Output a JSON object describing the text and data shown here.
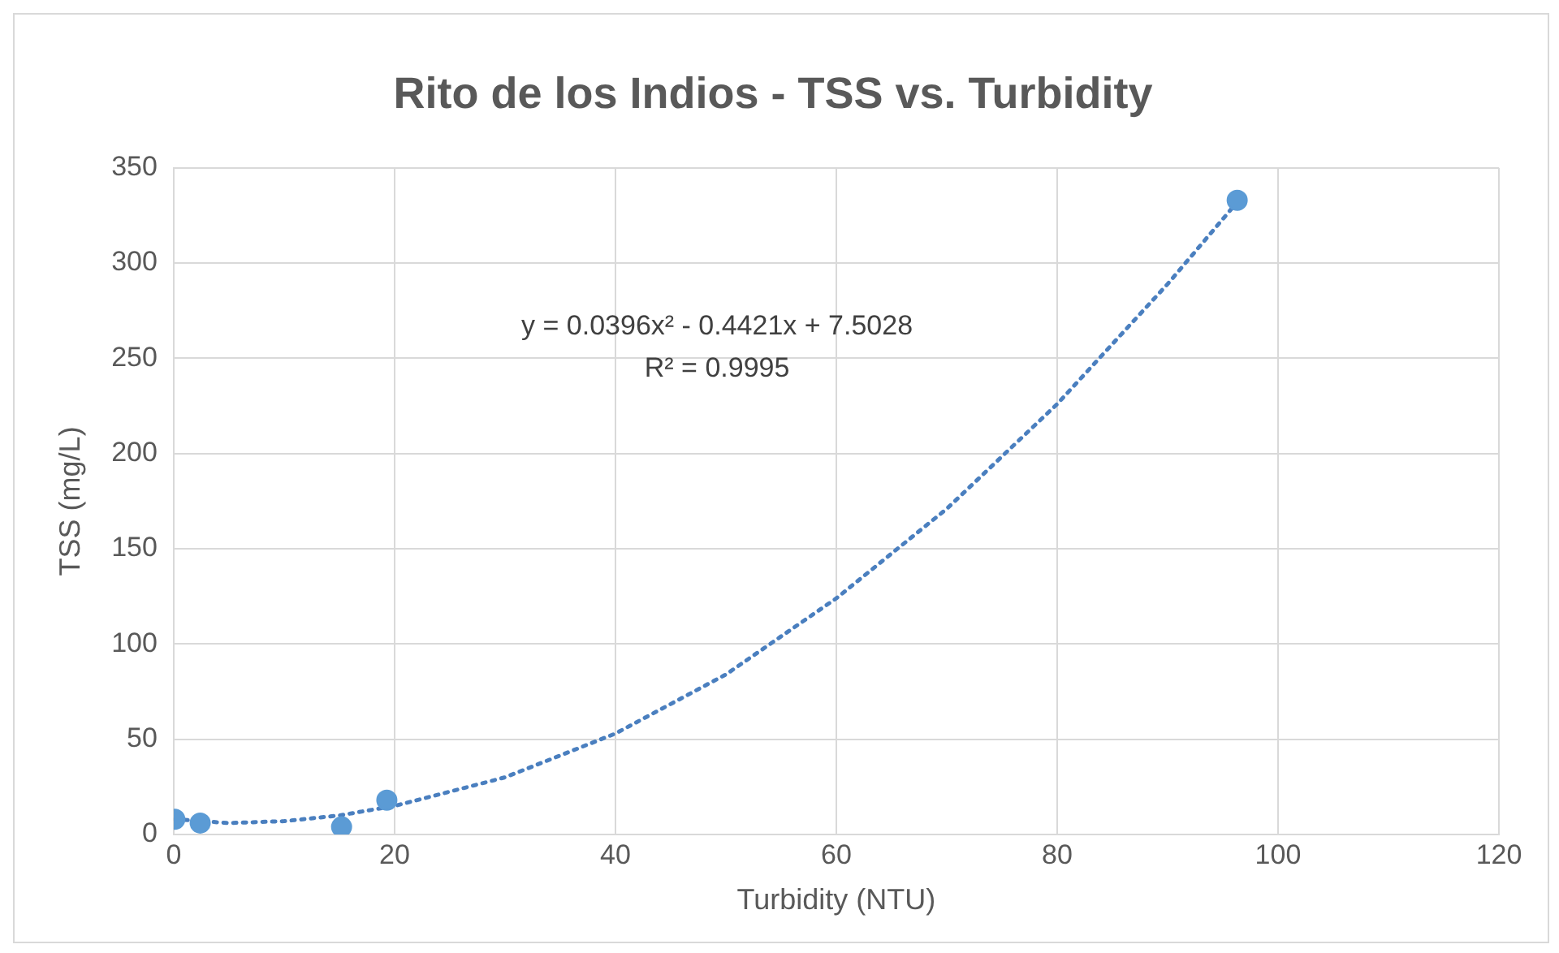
{
  "chart_data": {
    "type": "scatter",
    "title": "Rito de los Indios - TSS vs. Turbidity",
    "xlabel": "Turbidity (NTU)",
    "ylabel": "TSS (mg/L)",
    "series": [
      {
        "color": "#5b9bd5",
        "x": [
          0.1,
          2.4,
          15.2,
          19.3,
          96.3
        ],
        "values": [
          8,
          6,
          4,
          18,
          333
        ]
      },
      {
        "type": "line",
        "color": "#4a7fbf",
        "line_style": "dotted",
        "marker": "none",
        "x": [
          0.1,
          5,
          10,
          15,
          20,
          30,
          40,
          50,
          60,
          70,
          80,
          90,
          96.3
        ],
        "values": [
          8,
          6,
          7,
          10,
          15,
          30,
          53,
          84,
          124,
          171,
          226,
          289,
          332
        ]
      }
    ],
    "annotations": [
      "y = 0.0396x² - 0.4421x + 7.5028",
      "R² = 0.9995"
    ],
    "marker": "circle",
    "xlim": [
      0,
      120
    ],
    "xticks": [
      0,
      20,
      40,
      60,
      80,
      100,
      120
    ],
    "ylim": [
      0,
      350
    ],
    "yticks": [
      0,
      50,
      100,
      150,
      200,
      250,
      300,
      350
    ],
    "grid": true,
    "legend": false
  }
}
